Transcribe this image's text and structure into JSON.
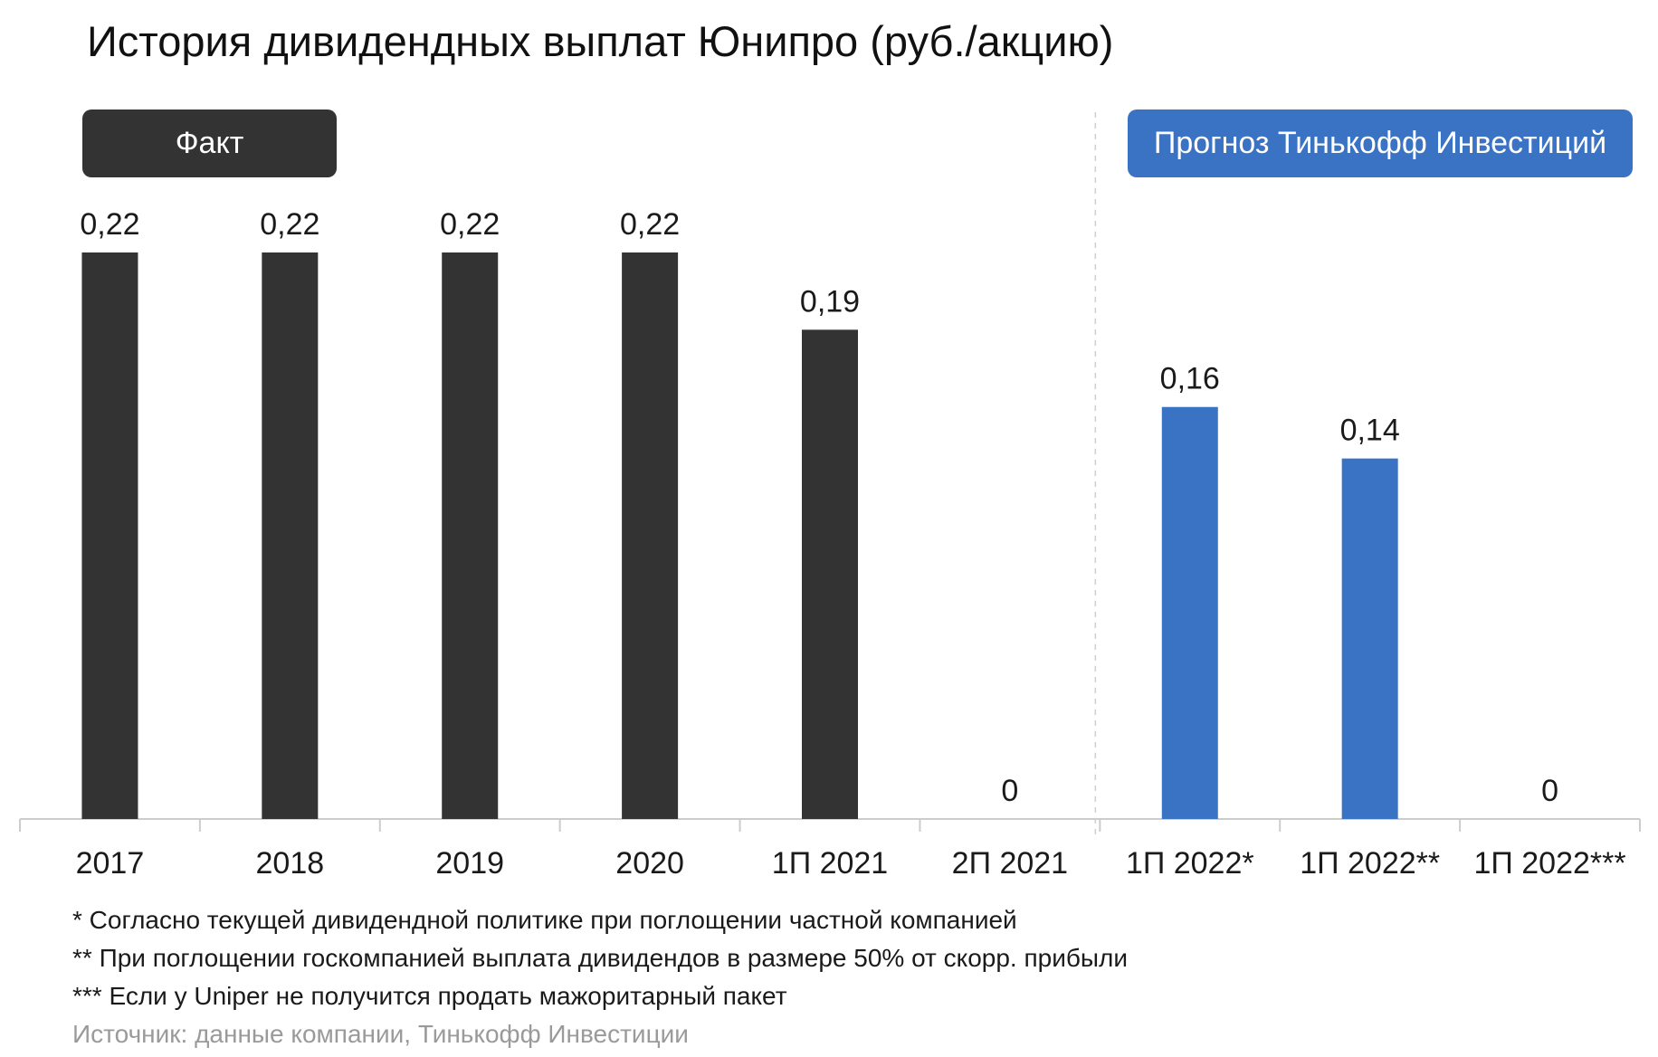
{
  "title": "История дивидендных выплат Юнипро (руб./акцию)",
  "colors": {
    "fact": "#333333",
    "forecast": "#3a72c4",
    "axis": "#cccccc",
    "divider": "#cfcfcf"
  },
  "chart_data": {
    "type": "bar",
    "title": "История дивидендных выплат Юнипро (руб./акцию)",
    "categories": [
      "2017",
      "2018",
      "2019",
      "2020",
      "1П 2021",
      "2П 2021",
      "1П 2022*",
      "1П 2022**",
      "1П 2022***"
    ],
    "values": [
      0.22,
      0.22,
      0.22,
      0.22,
      0.19,
      0,
      0.16,
      0.14,
      0
    ],
    "value_labels": [
      "0,22",
      "0,22",
      "0,22",
      "0,22",
      "0,19",
      "0",
      "0,16",
      "0,14",
      "0"
    ],
    "groups": [
      "fact",
      "fact",
      "fact",
      "fact",
      "fact",
      "fact",
      "forecast",
      "forecast",
      "forecast"
    ],
    "group_labels": {
      "fact": "Факт",
      "forecast": "Прогноз Тинькофф Инвестиций"
    },
    "ylim": [
      0,
      0.22
    ],
    "grid": false,
    "xlabel": "",
    "ylabel": ""
  },
  "footnotes": [
    "* Согласно текущей дивидендной политике при поглощении частной компанией",
    "** При поглощении госкомпанией выплата дивидендов в размере 50% от скорр. прибыли",
    "*** Если у Uniper не получится продать мажоритарный пакет"
  ],
  "source": "Источник: данные компании, Тинькофф Инвестиции"
}
